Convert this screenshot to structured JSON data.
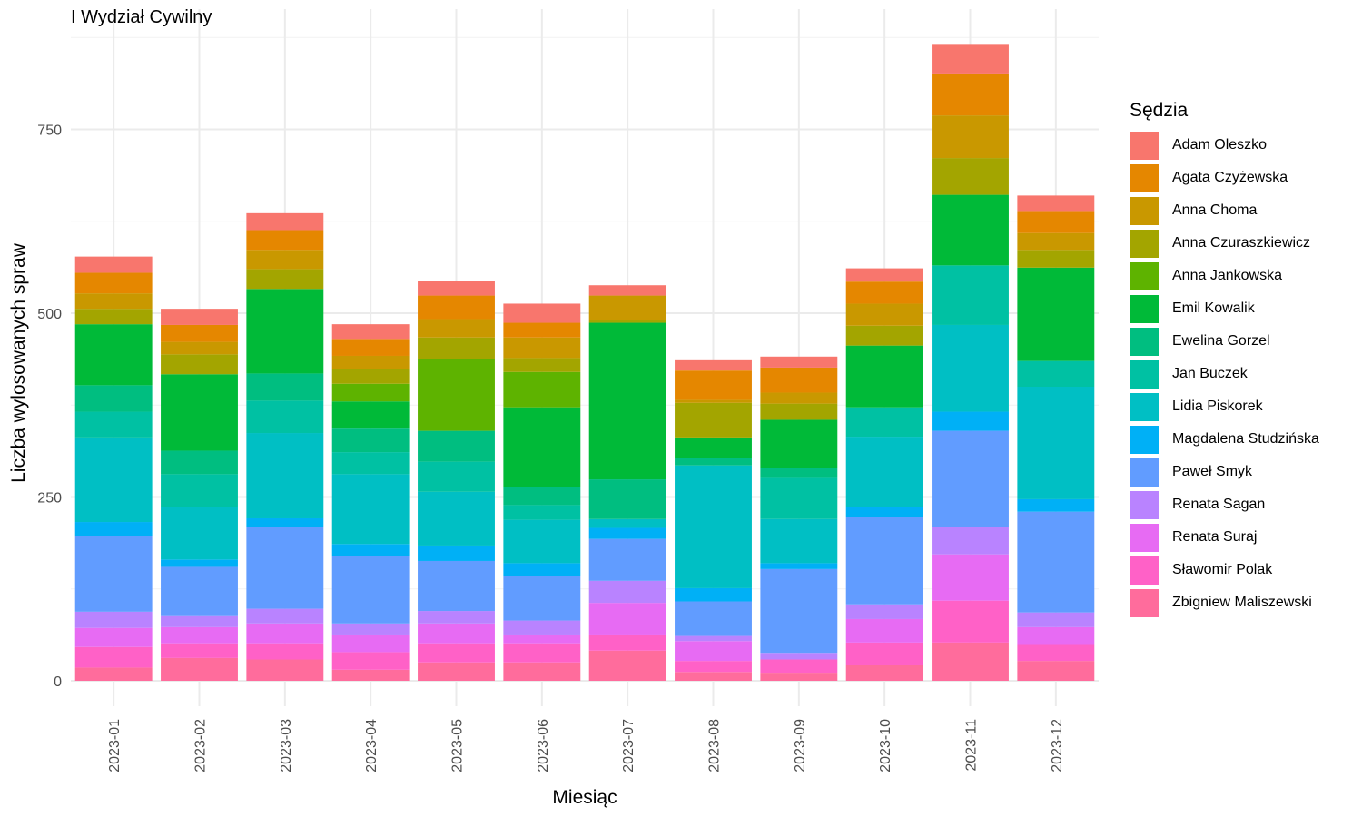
{
  "chart_data": {
    "type": "bar",
    "stacked": true,
    "title": "I Wydział Cywilny",
    "xlabel": "Miesiąc",
    "ylabel": "Liczba wylosowanych spraw",
    "ylim": [
      0,
      880
    ],
    "yticks": [
      0,
      250,
      500,
      750
    ],
    "grid": true,
    "legend_title": "Sędzia",
    "legend_position": "right",
    "categories": [
      "2023-01",
      "2023-02",
      "2023-03",
      "2023-04",
      "2023-05",
      "2023-06",
      "2023-07",
      "2023-08",
      "2023-09",
      "2023-10",
      "2023-11",
      "2023-12"
    ],
    "series": [
      {
        "name": "Zbigniew Maliszewski",
        "color": "#FF6C9C",
        "values": [
          18,
          31,
          29,
          15,
          25,
          25,
          41,
          12,
          11,
          21,
          52,
          27
        ]
      },
      {
        "name": "Sławomir Polak",
        "color": "#FF61C7",
        "values": [
          28,
          20,
          22,
          24,
          26,
          26,
          22,
          15,
          18,
          31,
          57,
          23
        ]
      },
      {
        "name": "Renata Suraj",
        "color": "#E76BF3",
        "values": [
          26,
          22,
          27,
          24,
          27,
          12,
          43,
          27,
          0,
          32,
          63,
          23
        ]
      },
      {
        "name": "Renata Sagan",
        "color": "#B983FF",
        "values": [
          22,
          15,
          20,
          15,
          17,
          19,
          30,
          7,
          9,
          20,
          37,
          20
        ]
      },
      {
        "name": "Paweł Smyk",
        "color": "#619CFF",
        "values": [
          103,
          67,
          111,
          92,
          68,
          61,
          57,
          47,
          114,
          119,
          131,
          137
        ]
      },
      {
        "name": "Magdalena Studzińska",
        "color": "#00B0F6",
        "values": [
          19,
          10,
          12,
          16,
          21,
          17,
          15,
          18,
          8,
          13,
          26,
          17
        ]
      },
      {
        "name": "Lidia Piskorek",
        "color": "#00BFC4",
        "values": [
          115,
          72,
          116,
          95,
          73,
          59,
          12,
          167,
          60,
          96,
          118,
          153
        ]
      },
      {
        "name": "Jan Buczek",
        "color": "#00C1A3",
        "values": [
          35,
          44,
          44,
          30,
          41,
          20,
          0,
          0,
          56,
          40,
          81,
          35
        ]
      },
      {
        "name": "Ewelina Gorzel",
        "color": "#00BE80",
        "values": [
          36,
          32,
          37,
          32,
          42,
          24,
          54,
          10,
          14,
          0,
          0,
          0
        ]
      },
      {
        "name": "Emil Kowalik",
        "color": "#00BA38",
        "values": [
          83,
          104,
          115,
          37,
          0,
          109,
          213,
          28,
          65,
          84,
          96,
          127
        ]
      },
      {
        "name": "Anna Jankowska",
        "color": "#5EB300",
        "values": [
          0,
          0,
          0,
          24,
          98,
          48,
          0,
          0,
          0,
          0,
          0,
          0
        ]
      },
      {
        "name": "Anna Czuraszkiewicz",
        "color": "#A3A500",
        "values": [
          21,
          27,
          27,
          20,
          29,
          19,
          4,
          47,
          22,
          27,
          50,
          24
        ]
      },
      {
        "name": "Anna Choma",
        "color": "#C99800",
        "values": [
          21,
          17,
          26,
          18,
          25,
          28,
          33,
          4,
          15,
          30,
          58,
          23
        ]
      },
      {
        "name": "Agata Czyżewska",
        "color": "#E58700",
        "values": [
          28,
          23,
          27,
          23,
          32,
          20,
          0,
          40,
          34,
          30,
          57,
          30
        ]
      },
      {
        "name": "Adam Oleszko",
        "color": "#F8766D",
        "values": [
          22,
          22,
          23,
          20,
          20,
          26,
          14,
          14,
          15,
          18,
          39,
          21
        ]
      }
    ]
  }
}
